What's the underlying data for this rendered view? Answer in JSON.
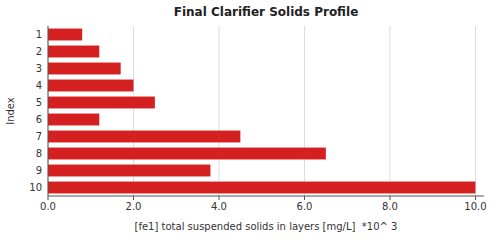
{
  "chart_data": {
    "type": "bar",
    "orientation": "horizontal",
    "title": "Final Clarifier Solids Profile",
    "xlabel": "[fe1] total suspended solids in layers [mg/L]  *10^ 3",
    "ylabel": "Index",
    "categories": [
      "1",
      "2",
      "3",
      "4",
      "5",
      "6",
      "7",
      "8",
      "9",
      "10"
    ],
    "values": [
      0.8,
      1.2,
      1.7,
      2.0,
      2.5,
      1.2,
      4.5,
      6.5,
      3.8,
      10.0
    ],
    "color": "#D42020",
    "xlim": [
      0,
      10.2
    ],
    "xticks": [
      {
        "value": 0,
        "label": "0.0"
      },
      {
        "value": 2.0,
        "label": "2.0"
      },
      {
        "value": 4.0,
        "label": "4.0"
      },
      {
        "value": 6.0,
        "label": "6.0"
      },
      {
        "value": 8.0,
        "label": "8.0"
      },
      {
        "value": 10.0,
        "label": "10.0"
      }
    ],
    "grid": true
  }
}
